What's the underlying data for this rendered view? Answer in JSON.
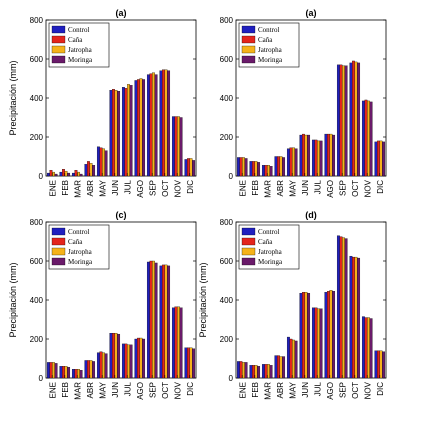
{
  "colors": {
    "Control": "#1f1fbf",
    "Caña": "#e3241c",
    "Jatropha": "#f5b21a",
    "Moringa": "#6a1a6a"
  },
  "chart_data": [
    {
      "type": "bar",
      "title": "(a)",
      "xlabel": "",
      "ylabel": "Precipitación (mm)",
      "ylim": [
        0,
        800
      ],
      "yticks": [
        0,
        200,
        400,
        600,
        800
      ],
      "categories": [
        "ENE",
        "FEB",
        "MAR",
        "ABR",
        "MAY",
        "JUN",
        "JUL",
        "AGO",
        "SEP",
        "OCT",
        "NOV",
        "DIC"
      ],
      "legend_position": "top-left",
      "series": [
        {
          "name": "Control",
          "values": [
            15,
            20,
            15,
            60,
            150,
            440,
            455,
            490,
            520,
            540,
            305,
            85
          ]
        },
        {
          "name": "Caña",
          "values": [
            30,
            35,
            30,
            75,
            145,
            445,
            450,
            495,
            525,
            545,
            305,
            90
          ]
        },
        {
          "name": "Jatropha",
          "values": [
            20,
            25,
            20,
            65,
            140,
            440,
            470,
            500,
            530,
            545,
            305,
            90
          ]
        },
        {
          "name": "Moringa",
          "values": [
            10,
            15,
            10,
            55,
            130,
            435,
            465,
            495,
            520,
            540,
            300,
            80
          ]
        }
      ]
    },
    {
      "type": "bar",
      "title": "(a)",
      "xlabel": "",
      "ylabel": "",
      "ylim": [
        0,
        800
      ],
      "yticks": [
        0,
        200,
        400,
        600,
        800
      ],
      "categories": [
        "ENE",
        "FEB",
        "MAR",
        "ABR",
        "MAY",
        "JUN",
        "JUL",
        "AGO",
        "SEP",
        "OCT",
        "NOV",
        "DIC"
      ],
      "legend_position": "top-left",
      "series": [
        {
          "name": "Control",
          "values": [
            95,
            75,
            55,
            100,
            140,
            210,
            185,
            215,
            570,
            580,
            385,
            175
          ]
        },
        {
          "name": "Caña",
          "values": [
            95,
            75,
            55,
            100,
            145,
            215,
            185,
            215,
            570,
            590,
            390,
            180
          ]
        },
        {
          "name": "Jatropha",
          "values": [
            95,
            75,
            55,
            100,
            145,
            210,
            180,
            215,
            565,
            585,
            385,
            180
          ]
        },
        {
          "name": "Moringa",
          "values": [
            90,
            70,
            50,
            95,
            140,
            210,
            180,
            210,
            565,
            580,
            380,
            175
          ]
        }
      ]
    },
    {
      "type": "bar",
      "title": "(c)",
      "xlabel": "",
      "ylabel": "Precipitación (mm)",
      "ylim": [
        0,
        800
      ],
      "yticks": [
        0,
        200,
        400,
        600,
        800
      ],
      "categories": [
        "ENE",
        "FEB",
        "MAR",
        "ABR",
        "MAY",
        "JUN",
        "JUL",
        "AGO",
        "SEP",
        "OCT",
        "NOV",
        "DIC"
      ],
      "legend_position": "top-left",
      "series": [
        {
          "name": "Control",
          "values": [
            80,
            60,
            45,
            90,
            130,
            230,
            175,
            200,
            595,
            575,
            360,
            155
          ]
        },
        {
          "name": "Caña",
          "values": [
            80,
            60,
            45,
            90,
            135,
            230,
            175,
            205,
            600,
            580,
            365,
            155
          ]
        },
        {
          "name": "Jatropha",
          "values": [
            80,
            60,
            45,
            90,
            130,
            230,
            170,
            205,
            600,
            580,
            365,
            155
          ]
        },
        {
          "name": "Moringa",
          "values": [
            75,
            55,
            40,
            85,
            125,
            225,
            170,
            200,
            590,
            575,
            360,
            150
          ]
        }
      ]
    },
    {
      "type": "bar",
      "title": "(d)",
      "xlabel": "",
      "ylabel": "Precipitación (mm)",
      "ylim": [
        0,
        800
      ],
      "yticks": [
        0,
        200,
        400,
        600,
        800
      ],
      "categories": [
        "ENE",
        "FEB",
        "MAR",
        "ABR",
        "MAY",
        "JUN",
        "JUL",
        "AGO",
        "SEP",
        "OCT",
        "NOV",
        "DIC"
      ],
      "legend_position": "top-left",
      "series": [
        {
          "name": "Control",
          "values": [
            85,
            65,
            70,
            115,
            210,
            435,
            360,
            440,
            730,
            625,
            315,
            140
          ]
        },
        {
          "name": "Caña",
          "values": [
            85,
            65,
            70,
            115,
            200,
            440,
            360,
            445,
            725,
            620,
            310,
            140
          ]
        },
        {
          "name": "Jatropha",
          "values": [
            80,
            65,
            70,
            110,
            195,
            440,
            355,
            450,
            720,
            620,
            310,
            140
          ]
        },
        {
          "name": "Moringa",
          "values": [
            80,
            60,
            65,
            110,
            190,
            435,
            355,
            445,
            715,
            615,
            305,
            135
          ]
        }
      ]
    }
  ]
}
